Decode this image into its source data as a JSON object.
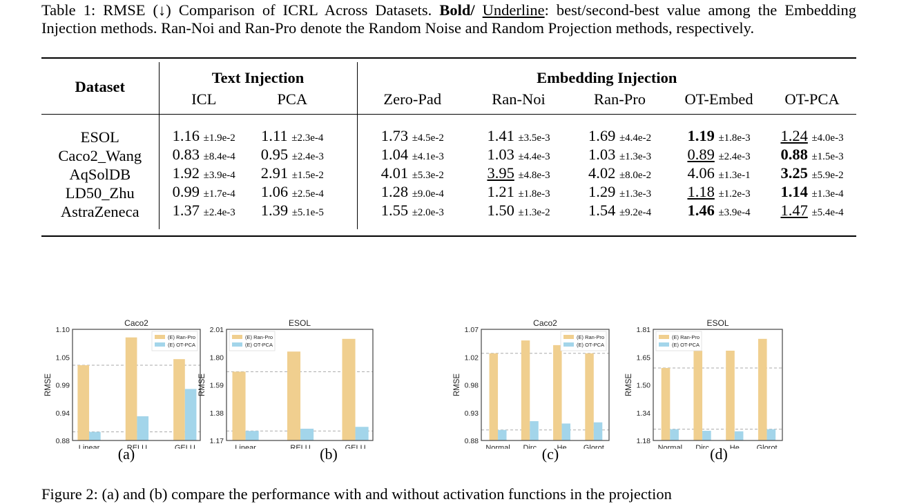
{
  "caption": {
    "prefix": "Table 1: RMSE (↓) Comparison of ICRL Across Datasets. ",
    "bold": "Bold/",
    "space": " ",
    "underline": "Underline",
    "rest": ": best/second-best value among the Embedding Injection methods. Ran-Noi and Ran-Pro denote the Random Noise and Random Projection methods, respectively."
  },
  "table": {
    "dataset_header": "Dataset",
    "groups": [
      "Text Injection",
      "Embedding Injection"
    ],
    "columns": [
      "ICL",
      "PCA",
      "Zero-Pad",
      "Ran-Noi",
      "Ran-Pro",
      "OT-Embed",
      "OT-PCA"
    ],
    "rows": [
      {
        "dataset": "ESOL",
        "cells": [
          {
            "v": "1.16",
            "sd": "±1.9e-2",
            "s": ""
          },
          {
            "v": "1.11",
            "sd": "±2.3e-4",
            "s": ""
          },
          {
            "v": "1.73",
            "sd": "±4.5e-2",
            "s": ""
          },
          {
            "v": "1.41",
            "sd": "±3.5e-3",
            "s": ""
          },
          {
            "v": "1.69",
            "sd": "±4.4e-2",
            "s": ""
          },
          {
            "v": "1.19",
            "sd": "±1.8e-3",
            "s": "bold"
          },
          {
            "v": "1.24",
            "sd": "±4.0e-3",
            "s": "underline"
          }
        ]
      },
      {
        "dataset": "Caco2_Wang",
        "cells": [
          {
            "v": "0.83",
            "sd": "±8.4e-4",
            "s": ""
          },
          {
            "v": "0.95",
            "sd": "±2.4e-3",
            "s": ""
          },
          {
            "v": "1.04",
            "sd": "±4.1e-3",
            "s": ""
          },
          {
            "v": "1.03",
            "sd": "±4.4e-3",
            "s": ""
          },
          {
            "v": "1.03",
            "sd": "±1.3e-3",
            "s": ""
          },
          {
            "v": "0.89",
            "sd": "±2.4e-3",
            "s": "underline"
          },
          {
            "v": "0.88",
            "sd": "±1.5e-3",
            "s": "bold"
          }
        ]
      },
      {
        "dataset": "AqSolDB",
        "cells": [
          {
            "v": "1.92",
            "sd": "±3.9e-4",
            "s": ""
          },
          {
            "v": "2.91",
            "sd": "±1.5e-2",
            "s": ""
          },
          {
            "v": "4.01",
            "sd": "±5.3e-2",
            "s": ""
          },
          {
            "v": "3.95",
            "sd": "±4.8e-3",
            "s": "underline"
          },
          {
            "v": "4.02",
            "sd": "±8.0e-2",
            "s": ""
          },
          {
            "v": "4.06",
            "sd": "±1.3e-1",
            "s": ""
          },
          {
            "v": "3.25",
            "sd": "±5.9e-2",
            "s": "bold"
          }
        ]
      },
      {
        "dataset": "LD50_Zhu",
        "cells": [
          {
            "v": "0.99",
            "sd": "±1.7e-4",
            "s": ""
          },
          {
            "v": "1.06",
            "sd": "±2.5e-4",
            "s": ""
          },
          {
            "v": "1.28",
            "sd": "±9.0e-4",
            "s": ""
          },
          {
            "v": "1.21",
            "sd": "±1.8e-3",
            "s": ""
          },
          {
            "v": "1.29",
            "sd": "±1.3e-3",
            "s": ""
          },
          {
            "v": "1.18",
            "sd": "±1.2e-3",
            "s": "underline"
          },
          {
            "v": "1.14",
            "sd": "±1.3e-4",
            "s": "bold"
          }
        ]
      },
      {
        "dataset": "AstraZeneca",
        "cells": [
          {
            "v": "1.37",
            "sd": "±2.4e-3",
            "s": ""
          },
          {
            "v": "1.39",
            "sd": "±5.1e-5",
            "s": ""
          },
          {
            "v": "1.55",
            "sd": "±2.0e-3",
            "s": ""
          },
          {
            "v": "1.50",
            "sd": "±1.3e-2",
            "s": ""
          },
          {
            "v": "1.54",
            "sd": "±9.2e-4",
            "s": ""
          },
          {
            "v": "1.46",
            "sd": "±3.9e-4",
            "s": "bold"
          },
          {
            "v": "1.47",
            "sd": "±5.4e-4",
            "s": "underline"
          }
        ]
      }
    ]
  },
  "colors": {
    "ran_pro": "#f0cf8f",
    "ot_pca": "#a3d5ea"
  },
  "chart_data": [
    {
      "type": "bar",
      "title": "Caco2",
      "ylabel": "RMSE",
      "ylim": [
        0.88,
        1.1
      ],
      "yticks": [
        "0.88",
        "0.94",
        "0.99",
        "1.05",
        "1.10"
      ],
      "categories": [
        "Linear",
        "RELU",
        "GELU"
      ],
      "legend": "top-right",
      "series": [
        {
          "name": "(E) Ran-Pro",
          "values": [
            1.029,
            1.084,
            1.041
          ]
        },
        {
          "name": "(E) OT-PCA",
          "values": [
            0.897,
            0.928,
            0.982
          ]
        }
      ],
      "subcaption": "(a)"
    },
    {
      "type": "bar",
      "title": "ESOL",
      "ylabel": "RMSE",
      "ylim": [
        1.17,
        2.01
      ],
      "yticks": [
        "1.17",
        "1.38",
        "1.59",
        "1.80",
        "2.01"
      ],
      "categories": [
        "Linear",
        "RELU",
        "GELU"
      ],
      "legend": "top-left",
      "series": [
        {
          "name": "(E) Ran-Pro",
          "values": [
            1.69,
            1.842,
            1.938
          ]
        },
        {
          "name": "(E) OT-PCA",
          "values": [
            1.242,
            1.259,
            1.273
          ]
        }
      ],
      "subcaption": "(b)"
    },
    {
      "type": "bar",
      "title": "Caco2",
      "ylabel": "RMSE",
      "ylim": [
        0.88,
        1.07
      ],
      "yticks": [
        "0.88",
        "0.93",
        "0.98",
        "1.02",
        "1.07"
      ],
      "categories": [
        "Normal",
        "Dirc",
        "He",
        "Glorot"
      ],
      "legend": "top-right",
      "series": [
        {
          "name": "(E) Ran-Pro",
          "values": [
            1.029,
            1.051,
            1.043,
            1.029
          ]
        },
        {
          "name": "(E) OT-PCA",
          "values": [
            0.898,
            0.913,
            0.909,
            0.911
          ]
        }
      ],
      "subcaption": "(c)"
    },
    {
      "type": "bar",
      "title": "ESOL",
      "ylabel": "RMSE",
      "ylim": [
        1.18,
        1.81
      ],
      "yticks": [
        "1.18",
        "1.34",
        "1.50",
        "1.65",
        "1.81"
      ],
      "categories": [
        "Normal",
        "Dirc",
        "He",
        "Glorot"
      ],
      "legend": "top-left",
      "series": [
        {
          "name": "(E) Ran-Pro",
          "values": [
            1.591,
            1.689,
            1.689,
            1.756
          ]
        },
        {
          "name": "(E) OT-PCA",
          "values": [
            1.244,
            1.235,
            1.232,
            1.244
          ]
        }
      ],
      "subcaption": "(d)"
    }
  ],
  "figure2_caption": "Figure 2: (a) and (b) compare the performance with and without activation functions in the projection"
}
